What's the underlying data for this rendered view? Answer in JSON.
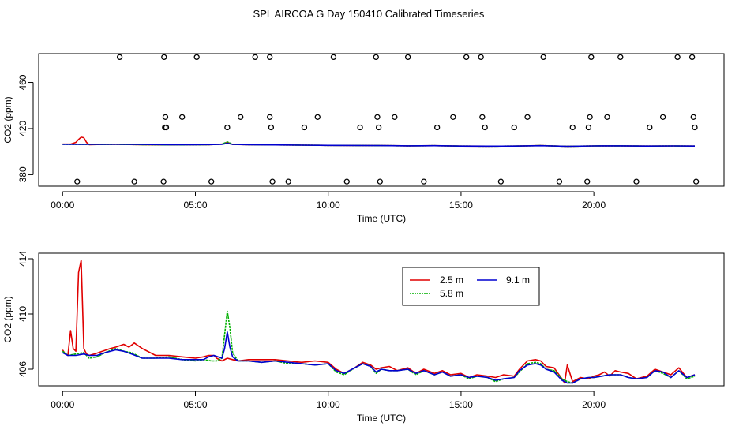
{
  "chart_data": [
    {
      "type": "line",
      "title": "SPL AIRCOA G  Day 150410  Calibrated Timeseries",
      "xlabel": "Time (UTC)",
      "ylabel": "CO2 (ppm)",
      "xlim": [
        -0.9,
        24.9
      ],
      "ylim": [
        370,
        485
      ],
      "x_ticks": [
        0,
        5,
        10,
        15,
        20
      ],
      "x_tick_labels": [
        "00:00",
        "05:00",
        "10:00",
        "15:00",
        "20:00"
      ],
      "y_ticks": [
        380,
        420,
        460
      ],
      "y_tick_labels": [
        "380",
        "420",
        "460"
      ],
      "series": [
        {
          "name": "2.5 m",
          "color": "#e00000",
          "x": [
            0.0,
            0.3,
            0.5,
            0.6,
            0.7,
            0.8,
            0.9,
            1.0,
            1.5,
            2.0,
            3.0,
            4.0,
            5.0,
            5.5,
            6.0,
            6.2,
            6.4,
            7.0,
            8.0,
            9.0,
            10.0,
            11.0,
            12.0,
            13.0,
            14.0,
            15.0,
            16.0,
            17.0,
            18.0,
            19.0,
            20.0,
            21.0,
            22.0,
            23.0,
            23.8
          ],
          "y": [
            406.5,
            406.5,
            408,
            410.5,
            412.5,
            412,
            408,
            406,
            406.2,
            406.3,
            406,
            405.8,
            406,
            406,
            406.5,
            408,
            406.2,
            406,
            405.8,
            405.6,
            405.4,
            405.3,
            405.2,
            405.0,
            405.1,
            404.8,
            404.7,
            404.8,
            405.2,
            404.6,
            404.9,
            405.0,
            404.8,
            404.9,
            404.8
          ]
        },
        {
          "name": "5.8 m",
          "color": "#00b000",
          "x": [
            0.0,
            1.0,
            2.0,
            3.0,
            4.0,
            5.0,
            5.5,
            6.0,
            6.2,
            6.4,
            7.0,
            8.0,
            9.0,
            10.0,
            11.0,
            12.0,
            13.0,
            14.0,
            15.0,
            16.0,
            17.0,
            18.0,
            19.0,
            20.0,
            21.0,
            22.0,
            23.0,
            23.8
          ],
          "y": [
            406.3,
            406.2,
            406.3,
            406,
            405.8,
            405.9,
            406,
            406.4,
            408.5,
            406.3,
            406,
            405.8,
            405.6,
            405.4,
            405.3,
            405.2,
            405.0,
            405.1,
            404.8,
            404.7,
            404.8,
            405.2,
            404.6,
            404.9,
            405.0,
            404.8,
            404.9,
            404.8
          ]
        },
        {
          "name": "9.1 m",
          "color": "#0000d0",
          "x": [
            0.0,
            1.0,
            2.0,
            3.0,
            4.0,
            5.0,
            5.5,
            6.0,
            6.2,
            6.4,
            7.0,
            8.0,
            9.0,
            10.0,
            11.0,
            12.0,
            13.0,
            14.0,
            15.0,
            16.0,
            17.0,
            18.0,
            19.0,
            20.0,
            21.0,
            22.0,
            23.0,
            23.8
          ],
          "y": [
            406.3,
            406.3,
            406.4,
            406.2,
            406,
            406,
            406.1,
            406.3,
            407.2,
            406.3,
            406,
            405.8,
            405.6,
            405.4,
            405.3,
            405.2,
            405.0,
            405.1,
            404.8,
            404.7,
            404.8,
            405.1,
            404.6,
            404.9,
            405.0,
            404.8,
            404.9,
            404.8
          ]
        }
      ],
      "calibration_points": {
        "x": [
          0.55,
          2.15,
          2.7,
          3.8,
          3.9,
          3.87,
          3.82,
          3.85,
          4.5,
          5.05,
          5.6,
          6.2,
          6.7,
          7.25,
          7.8,
          7.8,
          7.85,
          7.9,
          8.5,
          9.1,
          9.6,
          10.2,
          10.7,
          11.2,
          11.8,
          11.85,
          11.9,
          11.95,
          12.5,
          13.0,
          13.6,
          14.1,
          14.7,
          15.2,
          15.75,
          15.8,
          15.9,
          16.5,
          17.0,
          17.5,
          18.1,
          18.7,
          19.2,
          19.75,
          19.8,
          19.85,
          19.9,
          20.5,
          21.0,
          21.6,
          22.1,
          22.6,
          23.15,
          23.7,
          23.75,
          23.8,
          23.85
        ],
        "y": [
          374,
          482,
          374,
          374,
          421,
          430,
          482,
          421,
          430,
          482,
          374,
          421,
          430,
          482,
          482,
          430,
          421,
          374,
          374,
          421,
          430,
          482,
          374,
          421,
          482,
          430,
          421,
          374,
          430,
          482,
          374,
          421,
          430,
          482,
          482,
          430,
          421,
          374,
          421,
          430,
          482,
          374,
          421,
          374,
          421,
          430,
          482,
          430,
          482,
          374,
          421,
          430,
          482,
          482,
          430,
          421,
          374
        ]
      }
    },
    {
      "type": "line",
      "title": "",
      "xlabel": "Time (UTC)",
      "ylabel": "CO2 (ppm)",
      "xlim": [
        -0.9,
        24.9
      ],
      "ylim": [
        404.8,
        414.4
      ],
      "x_ticks": [
        0,
        5,
        10,
        15,
        20
      ],
      "x_tick_labels": [
        "00:00",
        "05:00",
        "10:00",
        "15:00",
        "20:00"
      ],
      "y_ticks": [
        406,
        410,
        414
      ],
      "y_tick_labels": [
        "406",
        "410",
        "414"
      ],
      "legend": {
        "placement": "top-center",
        "entries": [
          "2.5 m",
          "9.1 m",
          "5.8 m"
        ]
      },
      "series": [
        {
          "name": "2.5 m",
          "color": "#e00000",
          "x": [
            0.0,
            0.1,
            0.2,
            0.3,
            0.4,
            0.5,
            0.6,
            0.7,
            0.8,
            0.9,
            1.0,
            1.2,
            1.5,
            1.8,
            2.0,
            2.3,
            2.5,
            2.7,
            3.0,
            3.5,
            4.0,
            4.5,
            5.0,
            5.3,
            5.5,
            5.7,
            5.8,
            6.0,
            6.2,
            6.4,
            6.6,
            7.0,
            7.5,
            8.0,
            8.5,
            9.0,
            9.5,
            10.0,
            10.3,
            10.6,
            11.0,
            11.3,
            11.6,
            11.8,
            12.0,
            12.3,
            12.6,
            13.0,
            13.3,
            13.6,
            14.0,
            14.3,
            14.6,
            15.0,
            15.3,
            15.6,
            16.0,
            16.3,
            16.6,
            17.0,
            17.2,
            17.5,
            17.8,
            18.0,
            18.2,
            18.5,
            18.8,
            18.9,
            19.0,
            19.2,
            19.5,
            19.8,
            20.0,
            20.2,
            20.4,
            20.6,
            20.8,
            21.0,
            21.3,
            21.6,
            22.0,
            22.3,
            22.6,
            22.9,
            23.2,
            23.5,
            23.8
          ],
          "y": [
            407.4,
            407.1,
            407.0,
            408.8,
            407.5,
            407.3,
            413.0,
            413.9,
            407.5,
            407.1,
            407.0,
            407.1,
            407.3,
            407.5,
            407.6,
            407.8,
            407.6,
            407.9,
            407.5,
            407.0,
            407.0,
            406.9,
            406.8,
            406.9,
            407.0,
            407.0,
            406.8,
            406.6,
            406.8,
            406.7,
            406.6,
            406.7,
            406.7,
            406.7,
            406.6,
            406.5,
            406.6,
            406.5,
            406.0,
            405.7,
            406.1,
            406.5,
            406.3,
            406.0,
            406.1,
            406.2,
            405.9,
            406.1,
            405.7,
            406.0,
            405.7,
            405.9,
            405.6,
            405.7,
            405.4,
            405.6,
            405.5,
            405.4,
            405.6,
            405.5,
            406.0,
            406.6,
            406.7,
            406.6,
            406.2,
            406.1,
            405.3,
            405.0,
            406.3,
            405.1,
            405.4,
            405.3,
            405.5,
            405.6,
            405.8,
            405.5,
            405.9,
            405.8,
            405.7,
            405.3,
            405.5,
            406.0,
            405.8,
            405.6,
            406.1,
            405.4,
            405.6
          ]
        },
        {
          "name": "5.8 m",
          "color": "#00b000",
          "x": [
            0.0,
            0.2,
            0.5,
            0.8,
            1.0,
            1.3,
            1.6,
            2.0,
            2.3,
            2.6,
            3.0,
            3.5,
            4.0,
            4.5,
            5.0,
            5.3,
            5.6,
            5.8,
            6.0,
            6.1,
            6.2,
            6.3,
            6.4,
            6.6,
            7.0,
            7.5,
            8.0,
            8.5,
            9.0,
            9.5,
            10.0,
            10.3,
            10.6,
            11.0,
            11.3,
            11.6,
            11.8,
            12.0,
            12.3,
            12.6,
            13.0,
            13.3,
            13.6,
            14.0,
            14.3,
            14.6,
            15.0,
            15.3,
            15.6,
            16.0,
            16.3,
            16.6,
            17.0,
            17.2,
            17.5,
            17.8,
            18.0,
            18.2,
            18.5,
            18.8,
            19.0,
            19.2,
            19.5,
            19.8,
            20.0,
            20.3,
            20.6,
            21.0,
            21.3,
            21.6,
            22.0,
            22.3,
            22.6,
            22.9,
            23.2,
            23.5,
            23.8
          ],
          "y": [
            407.3,
            407.0,
            407.1,
            407.2,
            406.8,
            406.9,
            407.2,
            407.5,
            407.3,
            407.2,
            406.8,
            406.8,
            406.9,
            406.7,
            406.6,
            406.7,
            406.6,
            406.6,
            406.8,
            408.5,
            410.2,
            409.0,
            407.2,
            406.6,
            406.6,
            406.5,
            406.6,
            406.4,
            406.4,
            406.3,
            406.4,
            405.8,
            405.6,
            406.1,
            406.4,
            406.2,
            405.7,
            406.0,
            405.9,
            405.9,
            406.0,
            405.6,
            405.9,
            405.6,
            405.8,
            405.5,
            405.6,
            405.3,
            405.5,
            405.4,
            405.1,
            405.3,
            405.4,
            405.8,
            406.4,
            406.5,
            406.4,
            406.0,
            405.9,
            405.3,
            405.1,
            405.0,
            405.3,
            405.4,
            405.4,
            405.5,
            405.6,
            405.6,
            405.4,
            405.3,
            405.4,
            405.9,
            405.7,
            405.4,
            405.9,
            405.3,
            405.5
          ]
        },
        {
          "name": "9.1 m",
          "color": "#0000d0",
          "x": [
            0.0,
            0.2,
            0.5,
            0.8,
            1.0,
            1.3,
            1.6,
            2.0,
            2.3,
            2.6,
            3.0,
            3.5,
            4.0,
            4.5,
            5.0,
            5.3,
            5.5,
            5.7,
            6.0,
            6.1,
            6.2,
            6.3,
            6.4,
            6.6,
            7.0,
            7.5,
            8.0,
            8.5,
            9.0,
            9.5,
            10.0,
            10.3,
            10.6,
            11.0,
            11.3,
            11.6,
            11.8,
            12.0,
            12.3,
            12.6,
            13.0,
            13.3,
            13.6,
            14.0,
            14.3,
            14.6,
            15.0,
            15.3,
            15.6,
            16.0,
            16.3,
            16.6,
            17.0,
            17.2,
            17.5,
            17.8,
            18.0,
            18.2,
            18.5,
            18.8,
            19.0,
            19.2,
            19.5,
            19.8,
            20.0,
            20.3,
            20.6,
            21.0,
            21.3,
            21.6,
            22.0,
            22.3,
            22.6,
            22.9,
            23.2,
            23.5,
            23.8
          ],
          "y": [
            407.2,
            407.0,
            407.0,
            407.1,
            407.0,
            407.0,
            407.2,
            407.4,
            407.3,
            407.1,
            406.8,
            406.8,
            406.8,
            406.7,
            406.7,
            406.7,
            406.9,
            407.0,
            406.8,
            407.5,
            408.7,
            407.6,
            406.9,
            406.6,
            406.6,
            406.5,
            406.6,
            406.5,
            406.4,
            406.3,
            406.4,
            405.9,
            405.7,
            406.1,
            406.4,
            406.2,
            405.8,
            406.0,
            405.9,
            405.9,
            406.0,
            405.7,
            405.9,
            405.6,
            405.8,
            405.5,
            405.6,
            405.4,
            405.5,
            405.4,
            405.2,
            405.3,
            405.4,
            405.9,
            406.3,
            406.4,
            406.3,
            406.0,
            405.8,
            405.2,
            405.0,
            405.0,
            405.3,
            405.4,
            405.4,
            405.5,
            405.6,
            405.6,
            405.4,
            405.3,
            405.4,
            405.9,
            405.8,
            405.4,
            405.9,
            405.4,
            405.6
          ]
        }
      ]
    }
  ]
}
